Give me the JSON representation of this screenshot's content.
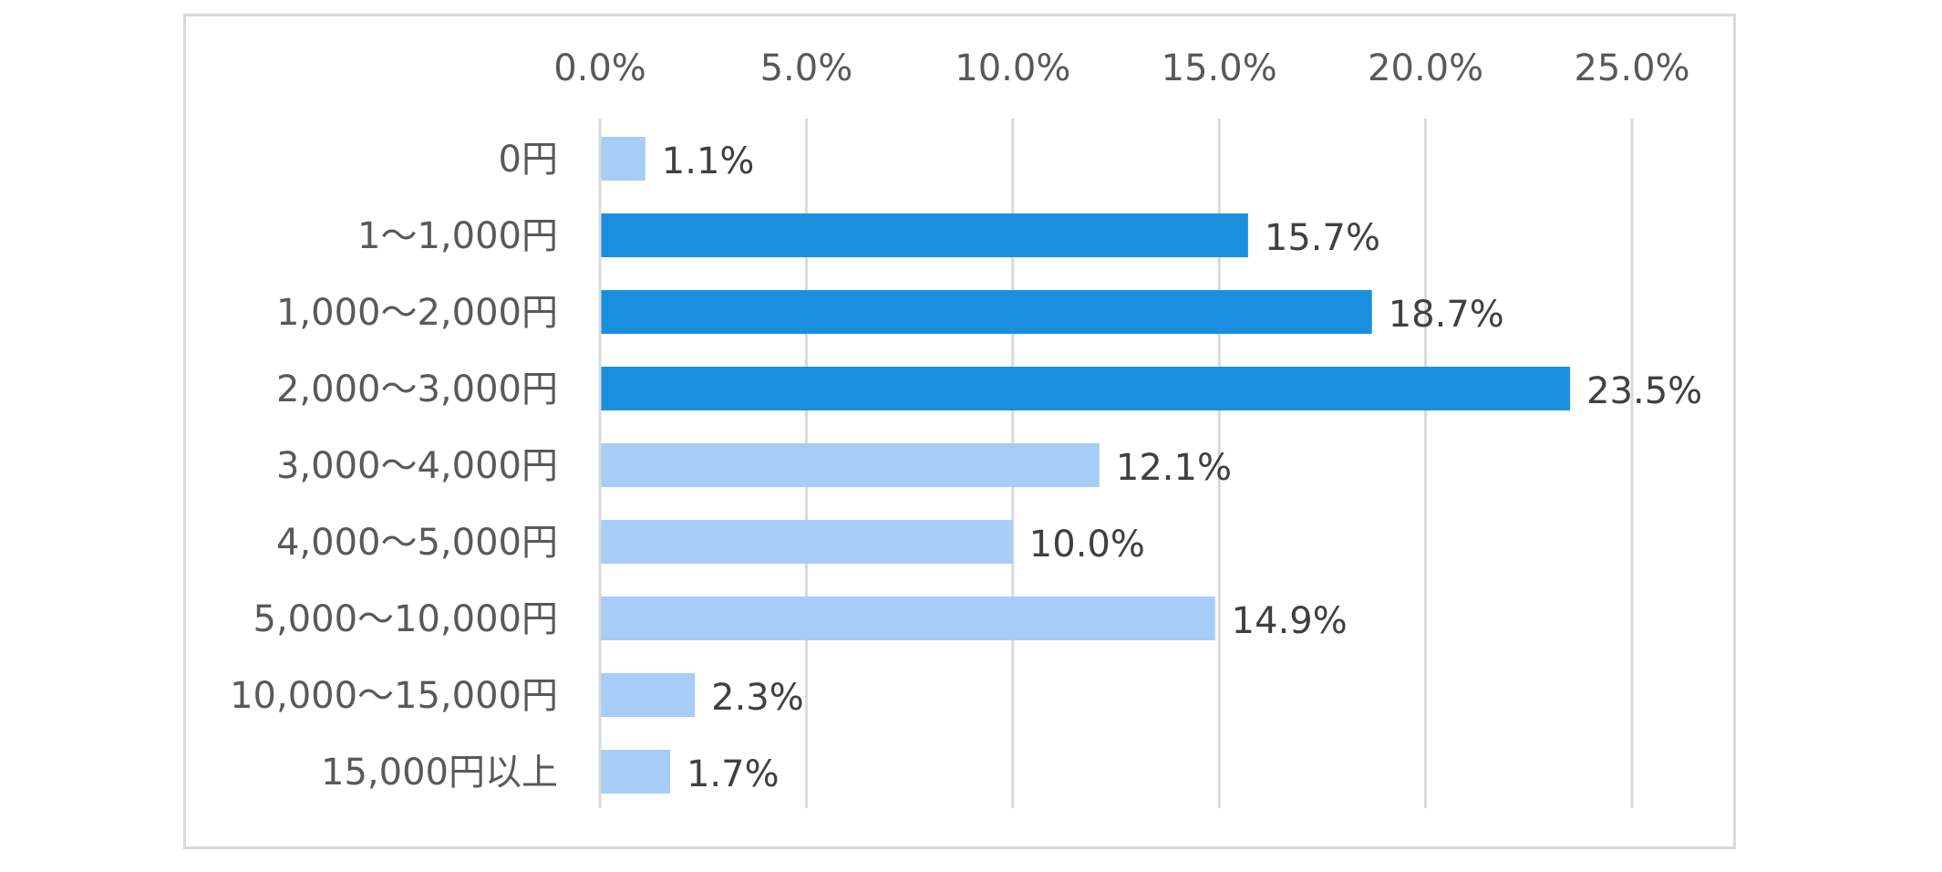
{
  "chart_data": {
    "type": "bar",
    "orientation": "horizontal",
    "title": "",
    "xlabel": "",
    "ylabel": "",
    "xlim": [
      0,
      25
    ],
    "x_ticks": [
      0,
      5,
      10,
      15,
      20,
      25
    ],
    "x_tick_labels": [
      "0.0%",
      "5.0%",
      "10.0%",
      "15.0%",
      "20.0%",
      "25.0%"
    ],
    "axis_position": "top",
    "grid": true,
    "legend": "none",
    "categories": [
      "0円",
      "1～1,000円",
      "1,000～2,000円",
      "2,000～3,000円",
      "3,000～4,000円",
      "4,000～5,000円",
      "5,000～10,000円",
      "10,000～15,000円",
      "15,000円以上"
    ],
    "values": [
      1.1,
      15.7,
      18.7,
      23.5,
      12.1,
      10.0,
      14.9,
      2.3,
      1.7
    ],
    "data_labels": [
      "1.1%",
      "15.7%",
      "18.7%",
      "23.5%",
      "12.1%",
      "10.0%",
      "14.9%",
      "2.3%",
      "1.7%"
    ],
    "highlighted": [
      false,
      true,
      true,
      true,
      false,
      false,
      false,
      false,
      false
    ],
    "colors": {
      "highlight": "#1b8fdf",
      "normal": "#a6cdf7",
      "grid": "#d9d9d9",
      "frame": "#d9d9d9",
      "tick_text": "#595959",
      "label_text": "#404040"
    }
  }
}
